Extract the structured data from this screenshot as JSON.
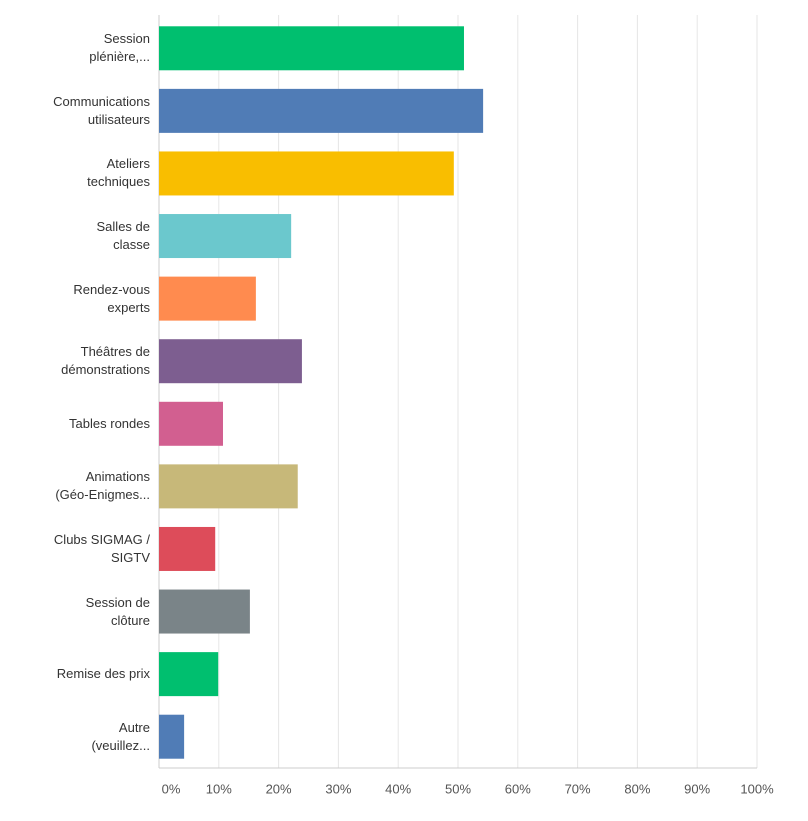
{
  "chart_data": {
    "type": "bar",
    "orientation": "horizontal",
    "categories": [
      "Session\nplénière,...",
      "Communications\nutilisateurs",
      "Ateliers\ntechniques",
      "Salles de\nclasse",
      "Rendez-vous\nexperts",
      "Théâtres de\ndémonstrations",
      "Tables rondes",
      "Animations\n(Géo-Enigmes...",
      "Clubs SIGMAG /\nSIGTV",
      "Session de\nclôture",
      "Remise des prix",
      "Autre\n(veuillez..."
    ],
    "values": [
      51,
      54.2,
      49.3,
      22.1,
      16.2,
      23.9,
      10.7,
      23.2,
      9.4,
      15.2,
      9.9,
      4.2
    ],
    "colors": [
      "#00bf6f",
      "#507cb6",
      "#f9be00",
      "#6bc8cd",
      "#ff8b4f",
      "#7d5e90",
      "#d25f90",
      "#c7b879",
      "#dd4c5a",
      "#7a8488",
      "#00bf6f",
      "#507cb6"
    ],
    "xlim": [
      0,
      100
    ],
    "xticks": [
      {
        "value": 0,
        "label": "0%"
      },
      {
        "value": 10,
        "label": "10%"
      },
      {
        "value": 20,
        "label": "20%"
      },
      {
        "value": 30,
        "label": "30%"
      },
      {
        "value": 40,
        "label": "40%"
      },
      {
        "value": 50,
        "label": "50%"
      },
      {
        "value": 60,
        "label": "60%"
      },
      {
        "value": 70,
        "label": "70%"
      },
      {
        "value": 80,
        "label": "80%"
      },
      {
        "value": 90,
        "label": "90%"
      },
      {
        "value": 100,
        "label": "100%"
      }
    ],
    "grid": true
  }
}
